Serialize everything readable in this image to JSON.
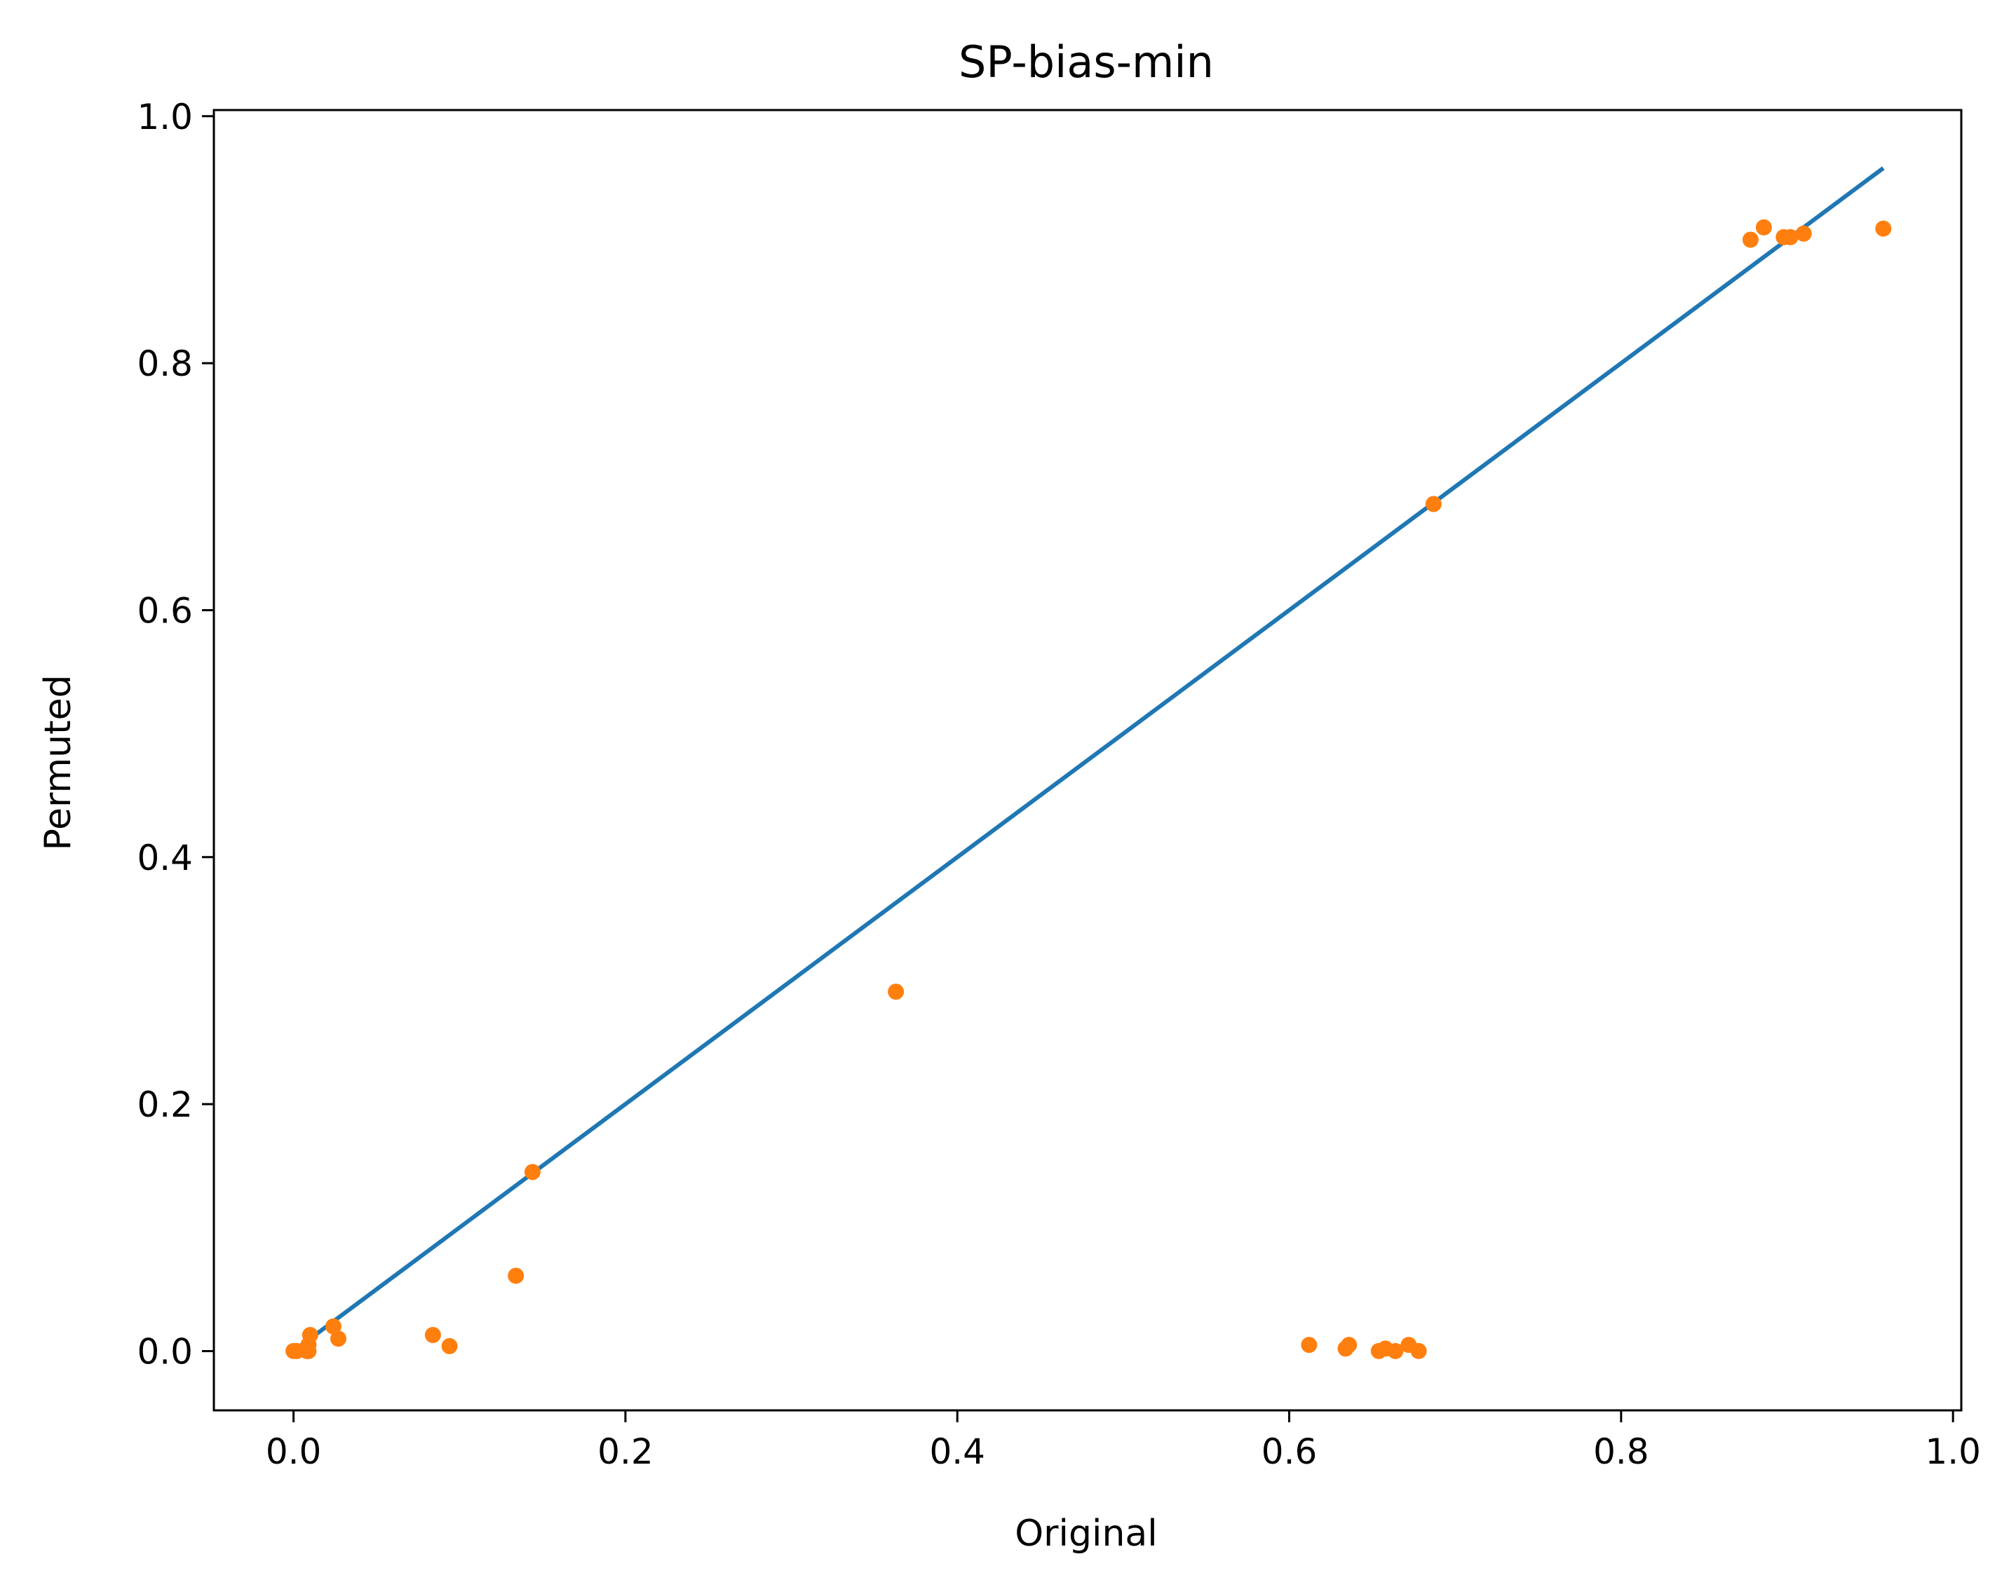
{
  "chart_data": {
    "type": "scatter",
    "title": "SP-bias-min",
    "xlabel": "Original",
    "ylabel": "Permuted",
    "xlim": [
      -0.048,
      1.005
    ],
    "ylim": [
      -0.048,
      1.005
    ],
    "x_ticks": [
      0.0,
      0.2,
      0.4,
      0.6,
      0.8,
      1.0
    ],
    "x_tick_labels": [
      "0.0",
      "0.2",
      "0.4",
      "0.6",
      "0.8",
      "1.0"
    ],
    "y_ticks": [
      0.0,
      0.2,
      0.4,
      0.6,
      0.8,
      1.0
    ],
    "y_tick_labels": [
      "0.0",
      "0.2",
      "0.4",
      "0.6",
      "0.8",
      "1.0"
    ],
    "grid": false,
    "legend": "none",
    "series": [
      {
        "type": "line",
        "color": "#1f77b4",
        "x": [
          0.0,
          0.958
        ],
        "y": [
          0.0,
          0.958
        ]
      },
      {
        "type": "scatter",
        "color": "#ff7f0e",
        "x": [
          0.0,
          0.002,
          0.008,
          0.009,
          0.01,
          0.009,
          0.024,
          0.027,
          0.084,
          0.094,
          0.134,
          0.144,
          0.363,
          0.612,
          0.634,
          0.636,
          0.654,
          0.658,
          0.664,
          0.672,
          0.678,
          0.687,
          0.878,
          0.886,
          0.898,
          0.902,
          0.91,
          0.958
        ],
        "y": [
          0.0,
          0.0,
          0.0,
          0.005,
          0.013,
          0.0,
          0.02,
          0.01,
          0.013,
          0.004,
          0.061,
          0.145,
          0.291,
          0.005,
          0.002,
          0.005,
          0.0,
          0.002,
          0.0,
          0.005,
          0.0,
          0.686,
          0.9,
          0.91,
          0.902,
          0.902,
          0.905,
          0.909
        ]
      }
    ]
  }
}
